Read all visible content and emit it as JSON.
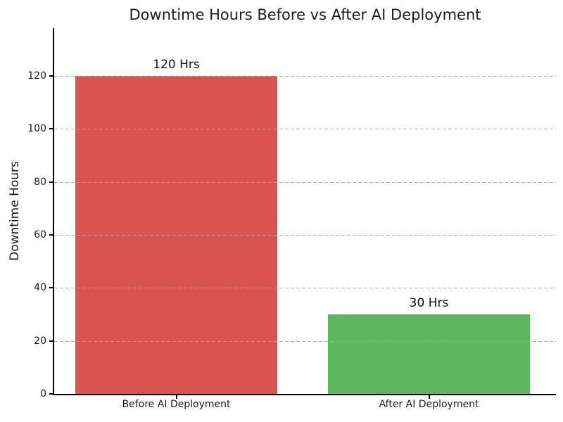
{
  "chart_data": {
    "type": "bar",
    "title": "Downtime Hours Before vs After AI Deployment",
    "categories": [
      "Before AI Deployment",
      "After AI Deployment"
    ],
    "values": [
      120,
      30
    ],
    "bar_labels": [
      "120 Hrs",
      "30 Hrs"
    ],
    "bar_colors": [
      "#d9534f",
      "#5cb85c"
    ],
    "xlabel": "",
    "ylabel": "Downtime Hours",
    "ylim": [
      0,
      138
    ],
    "yticks": [
      0,
      20,
      40,
      60,
      80,
      100,
      120
    ],
    "grid": {
      "axis": "y",
      "style": "dashed",
      "color": "#a8a8a8",
      "drawn_above_bars": true
    },
    "legend": {
      "visible": false
    },
    "background_color": "#ffffff",
    "text_color": "#1c1c1c"
  }
}
